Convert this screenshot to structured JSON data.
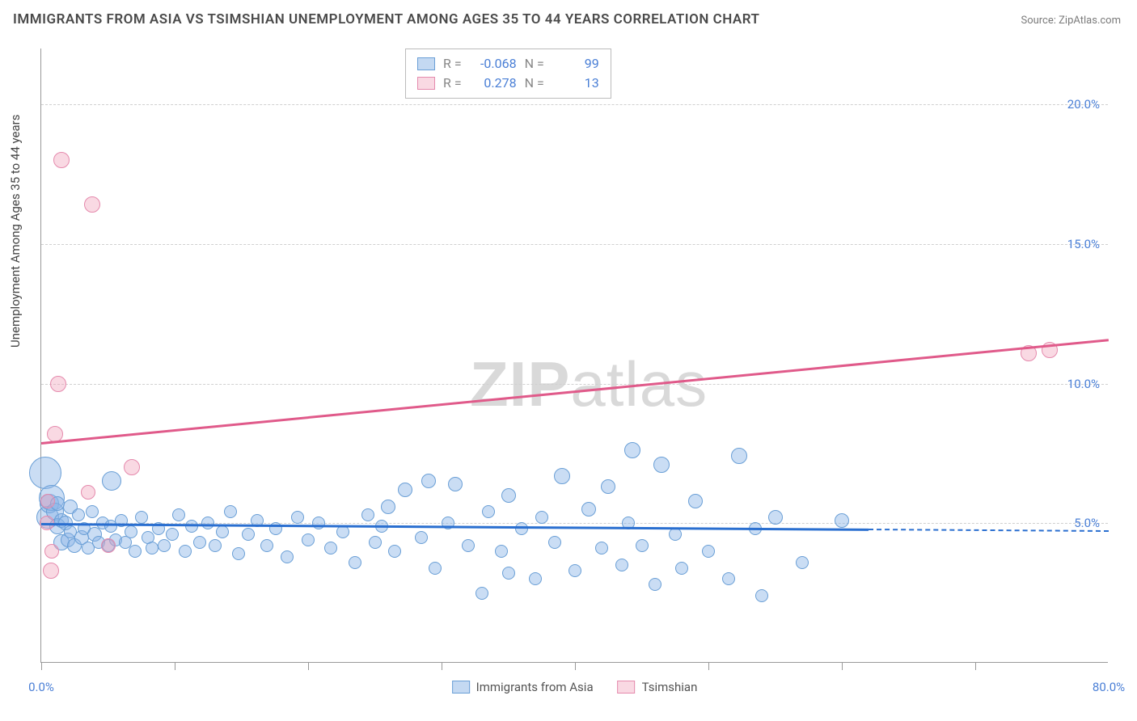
{
  "title": "IMMIGRANTS FROM ASIA VS TSIMSHIAN UNEMPLOYMENT AMONG AGES 35 TO 44 YEARS CORRELATION CHART",
  "source_label": "Source: ",
  "source_name": "ZipAtlas.com",
  "y_axis_title": "Unemployment Among Ages 35 to 44 years",
  "watermark_bold": "ZIP",
  "watermark_light": "atlas",
  "chart": {
    "type": "scatter",
    "xlim": [
      0,
      80
    ],
    "ylim": [
      0,
      22
    ],
    "x_ticks_visible": [
      0,
      10,
      20,
      30,
      40,
      50,
      60,
      70
    ],
    "x_labels": [
      {
        "v": 0,
        "t": "0.0%"
      },
      {
        "v": 80,
        "t": "80.0%"
      }
    ],
    "y_grid": [
      5,
      10,
      15,
      20
    ],
    "y_labels": [
      {
        "v": 5,
        "t": "5.0%"
      },
      {
        "v": 10,
        "t": "10.0%"
      },
      {
        "v": 15,
        "t": "15.0%"
      },
      {
        "v": 20,
        "t": "20.0%"
      }
    ],
    "background_color": "#ffffff",
    "grid_color": "#d0d0d0",
    "series": [
      {
        "name": "Immigrants from Asia",
        "color_fill": "rgba(138,180,230,0.45)",
        "color_stroke": "#6a9fd6",
        "R": "-0.068",
        "N": "99",
        "trend": {
          "x1": 0,
          "y1": 5.0,
          "x2": 62,
          "y2": 4.8,
          "extend_to": 80,
          "color": "#2a6fd0"
        },
        "points": [
          {
            "x": 0.3,
            "y": 6.8,
            "r": 20
          },
          {
            "x": 0.5,
            "y": 5.2,
            "r": 14
          },
          {
            "x": 0.6,
            "y": 5.7,
            "r": 12
          },
          {
            "x": 0.8,
            "y": 5.9,
            "r": 16
          },
          {
            "x": 1.0,
            "y": 5.4,
            "r": 11
          },
          {
            "x": 1.2,
            "y": 4.9,
            "r": 10
          },
          {
            "x": 1.2,
            "y": 5.7,
            "r": 9
          },
          {
            "x": 1.5,
            "y": 4.3,
            "r": 10
          },
          {
            "x": 1.5,
            "y": 5.1,
            "r": 9
          },
          {
            "x": 1.8,
            "y": 5.0,
            "r": 9
          },
          {
            "x": 2.0,
            "y": 4.4,
            "r": 9
          },
          {
            "x": 2.2,
            "y": 5.6,
            "r": 9
          },
          {
            "x": 2.2,
            "y": 4.7,
            "r": 8
          },
          {
            "x": 2.5,
            "y": 4.2,
            "r": 9
          },
          {
            "x": 2.8,
            "y": 5.3,
            "r": 8
          },
          {
            "x": 3.0,
            "y": 4.5,
            "r": 9
          },
          {
            "x": 3.2,
            "y": 4.8,
            "r": 8
          },
          {
            "x": 3.5,
            "y": 4.1,
            "r": 8
          },
          {
            "x": 3.8,
            "y": 5.4,
            "r": 8
          },
          {
            "x": 4.0,
            "y": 4.6,
            "r": 9
          },
          {
            "x": 4.3,
            "y": 4.3,
            "r": 8
          },
          {
            "x": 4.6,
            "y": 5.0,
            "r": 8
          },
          {
            "x": 5.0,
            "y": 4.2,
            "r": 8
          },
          {
            "x": 5.2,
            "y": 4.9,
            "r": 8
          },
          {
            "x": 5.3,
            "y": 6.5,
            "r": 12
          },
          {
            "x": 5.6,
            "y": 4.4,
            "r": 8
          },
          {
            "x": 6.0,
            "y": 5.1,
            "r": 8
          },
          {
            "x": 6.3,
            "y": 4.3,
            "r": 8
          },
          {
            "x": 6.7,
            "y": 4.7,
            "r": 8
          },
          {
            "x": 7.0,
            "y": 4.0,
            "r": 8
          },
          {
            "x": 7.5,
            "y": 5.2,
            "r": 8
          },
          {
            "x": 8.0,
            "y": 4.5,
            "r": 8
          },
          {
            "x": 8.3,
            "y": 4.1,
            "r": 8
          },
          {
            "x": 8.8,
            "y": 4.8,
            "r": 8
          },
          {
            "x": 9.2,
            "y": 4.2,
            "r": 8
          },
          {
            "x": 9.8,
            "y": 4.6,
            "r": 8
          },
          {
            "x": 10.3,
            "y": 5.3,
            "r": 8
          },
          {
            "x": 10.8,
            "y": 4.0,
            "r": 8
          },
          {
            "x": 11.3,
            "y": 4.9,
            "r": 8
          },
          {
            "x": 11.9,
            "y": 4.3,
            "r": 8
          },
          {
            "x": 12.5,
            "y": 5.0,
            "r": 8
          },
          {
            "x": 13.0,
            "y": 4.2,
            "r": 8
          },
          {
            "x": 13.6,
            "y": 4.7,
            "r": 8
          },
          {
            "x": 14.2,
            "y": 5.4,
            "r": 8
          },
          {
            "x": 14.8,
            "y": 3.9,
            "r": 8
          },
          {
            "x": 15.5,
            "y": 4.6,
            "r": 8
          },
          {
            "x": 16.2,
            "y": 5.1,
            "r": 8
          },
          {
            "x": 16.9,
            "y": 4.2,
            "r": 8
          },
          {
            "x": 17.6,
            "y": 4.8,
            "r": 8
          },
          {
            "x": 18.4,
            "y": 3.8,
            "r": 8
          },
          {
            "x": 19.2,
            "y": 5.2,
            "r": 8
          },
          {
            "x": 20.0,
            "y": 4.4,
            "r": 8
          },
          {
            "x": 20.8,
            "y": 5.0,
            "r": 8
          },
          {
            "x": 21.7,
            "y": 4.1,
            "r": 8
          },
          {
            "x": 22.6,
            "y": 4.7,
            "r": 8
          },
          {
            "x": 23.5,
            "y": 3.6,
            "r": 8
          },
          {
            "x": 24.5,
            "y": 5.3,
            "r": 8
          },
          {
            "x": 25.0,
            "y": 4.3,
            "r": 8
          },
          {
            "x": 25.5,
            "y": 4.9,
            "r": 8
          },
          {
            "x": 26.0,
            "y": 5.6,
            "r": 9
          },
          {
            "x": 26.5,
            "y": 4.0,
            "r": 8
          },
          {
            "x": 27.3,
            "y": 6.2,
            "r": 9
          },
          {
            "x": 28.5,
            "y": 4.5,
            "r": 8
          },
          {
            "x": 29.0,
            "y": 6.5,
            "r": 9
          },
          {
            "x": 29.5,
            "y": 3.4,
            "r": 8
          },
          {
            "x": 30.5,
            "y": 5.0,
            "r": 8
          },
          {
            "x": 31.0,
            "y": 6.4,
            "r": 9
          },
          {
            "x": 32.0,
            "y": 4.2,
            "r": 8
          },
          {
            "x": 33.0,
            "y": 2.5,
            "r": 8
          },
          {
            "x": 33.5,
            "y": 5.4,
            "r": 8
          },
          {
            "x": 34.5,
            "y": 4.0,
            "r": 8
          },
          {
            "x": 35.0,
            "y": 3.2,
            "r": 8
          },
          {
            "x": 35.0,
            "y": 6.0,
            "r": 9
          },
          {
            "x": 36.0,
            "y": 4.8,
            "r": 8
          },
          {
            "x": 37.0,
            "y": 3.0,
            "r": 8
          },
          {
            "x": 37.5,
            "y": 5.2,
            "r": 8
          },
          {
            "x": 38.5,
            "y": 4.3,
            "r": 8
          },
          {
            "x": 39.0,
            "y": 6.7,
            "r": 10
          },
          {
            "x": 40.0,
            "y": 3.3,
            "r": 8
          },
          {
            "x": 41.0,
            "y": 5.5,
            "r": 9
          },
          {
            "x": 42.0,
            "y": 4.1,
            "r": 8
          },
          {
            "x": 42.5,
            "y": 6.3,
            "r": 9
          },
          {
            "x": 43.5,
            "y": 3.5,
            "r": 8
          },
          {
            "x": 44.0,
            "y": 5.0,
            "r": 8
          },
          {
            "x": 44.3,
            "y": 7.6,
            "r": 10
          },
          {
            "x": 45.0,
            "y": 4.2,
            "r": 8
          },
          {
            "x": 46.0,
            "y": 2.8,
            "r": 8
          },
          {
            "x": 46.5,
            "y": 7.1,
            "r": 10
          },
          {
            "x": 47.5,
            "y": 4.6,
            "r": 8
          },
          {
            "x": 48.0,
            "y": 3.4,
            "r": 8
          },
          {
            "x": 49.0,
            "y": 5.8,
            "r": 9
          },
          {
            "x": 50.0,
            "y": 4.0,
            "r": 8
          },
          {
            "x": 51.5,
            "y": 3.0,
            "r": 8
          },
          {
            "x": 52.3,
            "y": 7.4,
            "r": 10
          },
          {
            "x": 53.5,
            "y": 4.8,
            "r": 8
          },
          {
            "x": 54.0,
            "y": 2.4,
            "r": 8
          },
          {
            "x": 55.0,
            "y": 5.2,
            "r": 9
          },
          {
            "x": 57.0,
            "y": 3.6,
            "r": 8
          },
          {
            "x": 60.0,
            "y": 5.1,
            "r": 9
          }
        ]
      },
      {
        "name": "Tsimshian",
        "color_fill": "rgba(240,160,185,0.4)",
        "color_stroke": "#e58aad",
        "R": "0.278",
        "N": "13",
        "trend": {
          "x1": 0,
          "y1": 7.9,
          "x2": 80,
          "y2": 11.6,
          "color": "#e05a8a"
        },
        "points": [
          {
            "x": 0.4,
            "y": 5.0,
            "r": 9
          },
          {
            "x": 0.5,
            "y": 5.8,
            "r": 9
          },
          {
            "x": 0.8,
            "y": 4.0,
            "r": 9
          },
          {
            "x": 0.7,
            "y": 3.3,
            "r": 10
          },
          {
            "x": 1.0,
            "y": 8.2,
            "r": 10
          },
          {
            "x": 1.3,
            "y": 10.0,
            "r": 10
          },
          {
            "x": 1.5,
            "y": 18.0,
            "r": 10
          },
          {
            "x": 3.8,
            "y": 16.4,
            "r": 10
          },
          {
            "x": 3.5,
            "y": 6.1,
            "r": 9
          },
          {
            "x": 5.0,
            "y": 4.2,
            "r": 9
          },
          {
            "x": 6.8,
            "y": 7.0,
            "r": 10
          },
          {
            "x": 74.0,
            "y": 11.1,
            "r": 10
          },
          {
            "x": 75.6,
            "y": 11.2,
            "r": 10
          }
        ]
      }
    ]
  },
  "legend_blue": "Immigrants from Asia",
  "legend_pink": "Tsimshian",
  "R_label": "R =",
  "N_label": "N ="
}
